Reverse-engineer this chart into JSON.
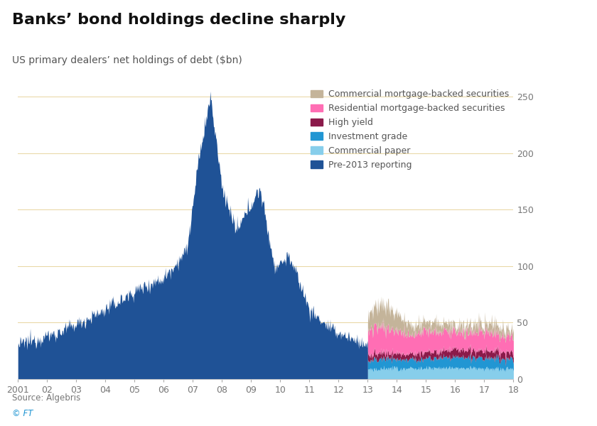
{
  "title": "Banks’ bond holdings decline sharply",
  "subtitle": "US primary dealers’ net holdings of debt ($bn)",
  "source": "Source: Algebris",
  "copyright": "© FT",
  "y_max": 260,
  "y_ticks": [
    0,
    50,
    100,
    150,
    200,
    250
  ],
  "x_ticks": [
    2001,
    2002,
    2003,
    2004,
    2005,
    2006,
    2007,
    2008,
    2009,
    2010,
    2011,
    2012,
    2013,
    2014,
    2015,
    2016,
    2017,
    2018
  ],
  "x_tick_labels": [
    "2001",
    "02",
    "03",
    "04",
    "05",
    "06",
    "07",
    "08",
    "09",
    "10",
    "11",
    "12",
    "13",
    "14",
    "15",
    "16",
    "17",
    "18"
  ],
  "colors": {
    "pre2013": "#1f5296",
    "commercial_paper": "#87ceeb",
    "investment_grade": "#2196d3",
    "high_yield": "#8b1a4a",
    "residential_mbs": "#ff6eb4",
    "commercial_mbs": "#c4b49a"
  },
  "legend": [
    {
      "label": "Commercial mortgage-backed securities",
      "color": "#c4b49a"
    },
    {
      "label": "Residential mortgage-backed securities",
      "color": "#ff6eb4"
    },
    {
      "label": "High yield",
      "color": "#8b1a4a"
    },
    {
      "label": "Investment grade",
      "color": "#2196d3"
    },
    {
      "label": "Commercial paper",
      "color": "#87ceeb"
    },
    {
      "label": "Pre-2013 reporting",
      "color": "#1f5296"
    }
  ],
  "grid_color": "#e8d5a0",
  "title_fontsize": 16,
  "subtitle_fontsize": 10,
  "tick_fontsize": 9,
  "legend_fontsize": 9
}
